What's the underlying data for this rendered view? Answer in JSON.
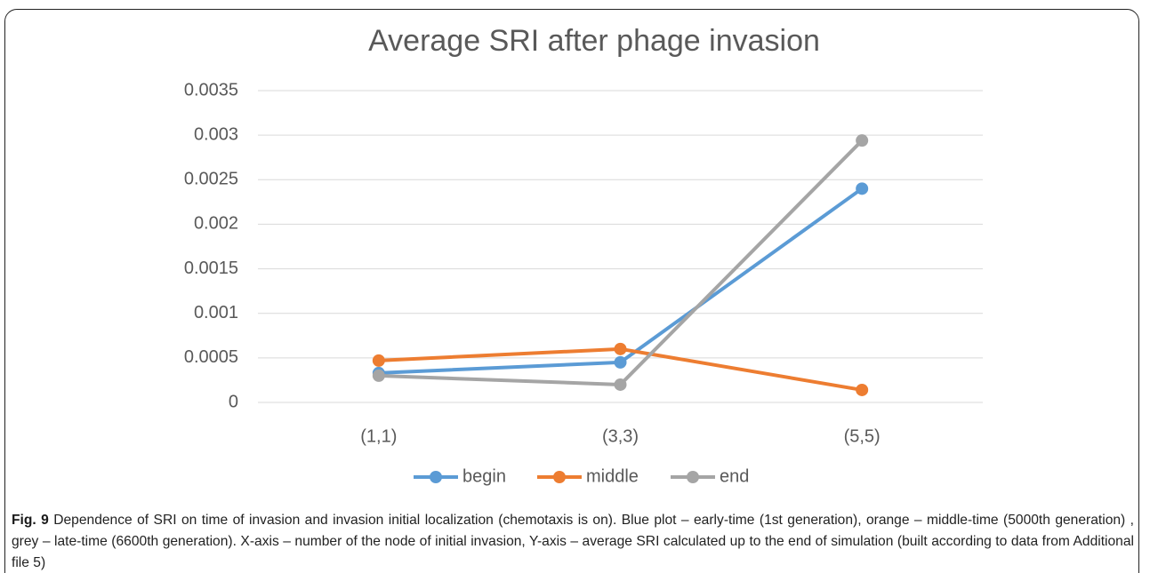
{
  "chart_data": {
    "type": "line",
    "title": "Average SRI after phage invasion",
    "categories": [
      "(1,1)",
      "(3,3)",
      "(5,5)"
    ],
    "series": [
      {
        "name": "begin",
        "color": "#5b9bd5",
        "values": [
          0.00033,
          0.00045,
          0.0024
        ]
      },
      {
        "name": "middle",
        "color": "#ed7d31",
        "values": [
          0.00047,
          0.0006,
          0.00014
        ]
      },
      {
        "name": "end",
        "color": "#a5a5a5",
        "values": [
          0.0003,
          0.0002,
          0.00294
        ]
      }
    ],
    "ylim": [
      0,
      0.0035
    ],
    "yticks": [
      0,
      0.0005,
      0.001,
      0.0015,
      0.002,
      0.0025,
      0.003,
      0.0035
    ],
    "grid": true,
    "legend": "bottom"
  },
  "caption": {
    "label": "Fig. 9",
    "text": "Dependence of SRI on time of invasion and invasion initial localization (chemotaxis is on). Blue plot – early-time (1st generation), orange – middle-time (5000th generation) , grey – late-time (6600th generation). X-axis – number of the node of initial invasion, Y-axis – average SRI calculated up to the end of simulation (built according to data from Additional file 5)"
  }
}
